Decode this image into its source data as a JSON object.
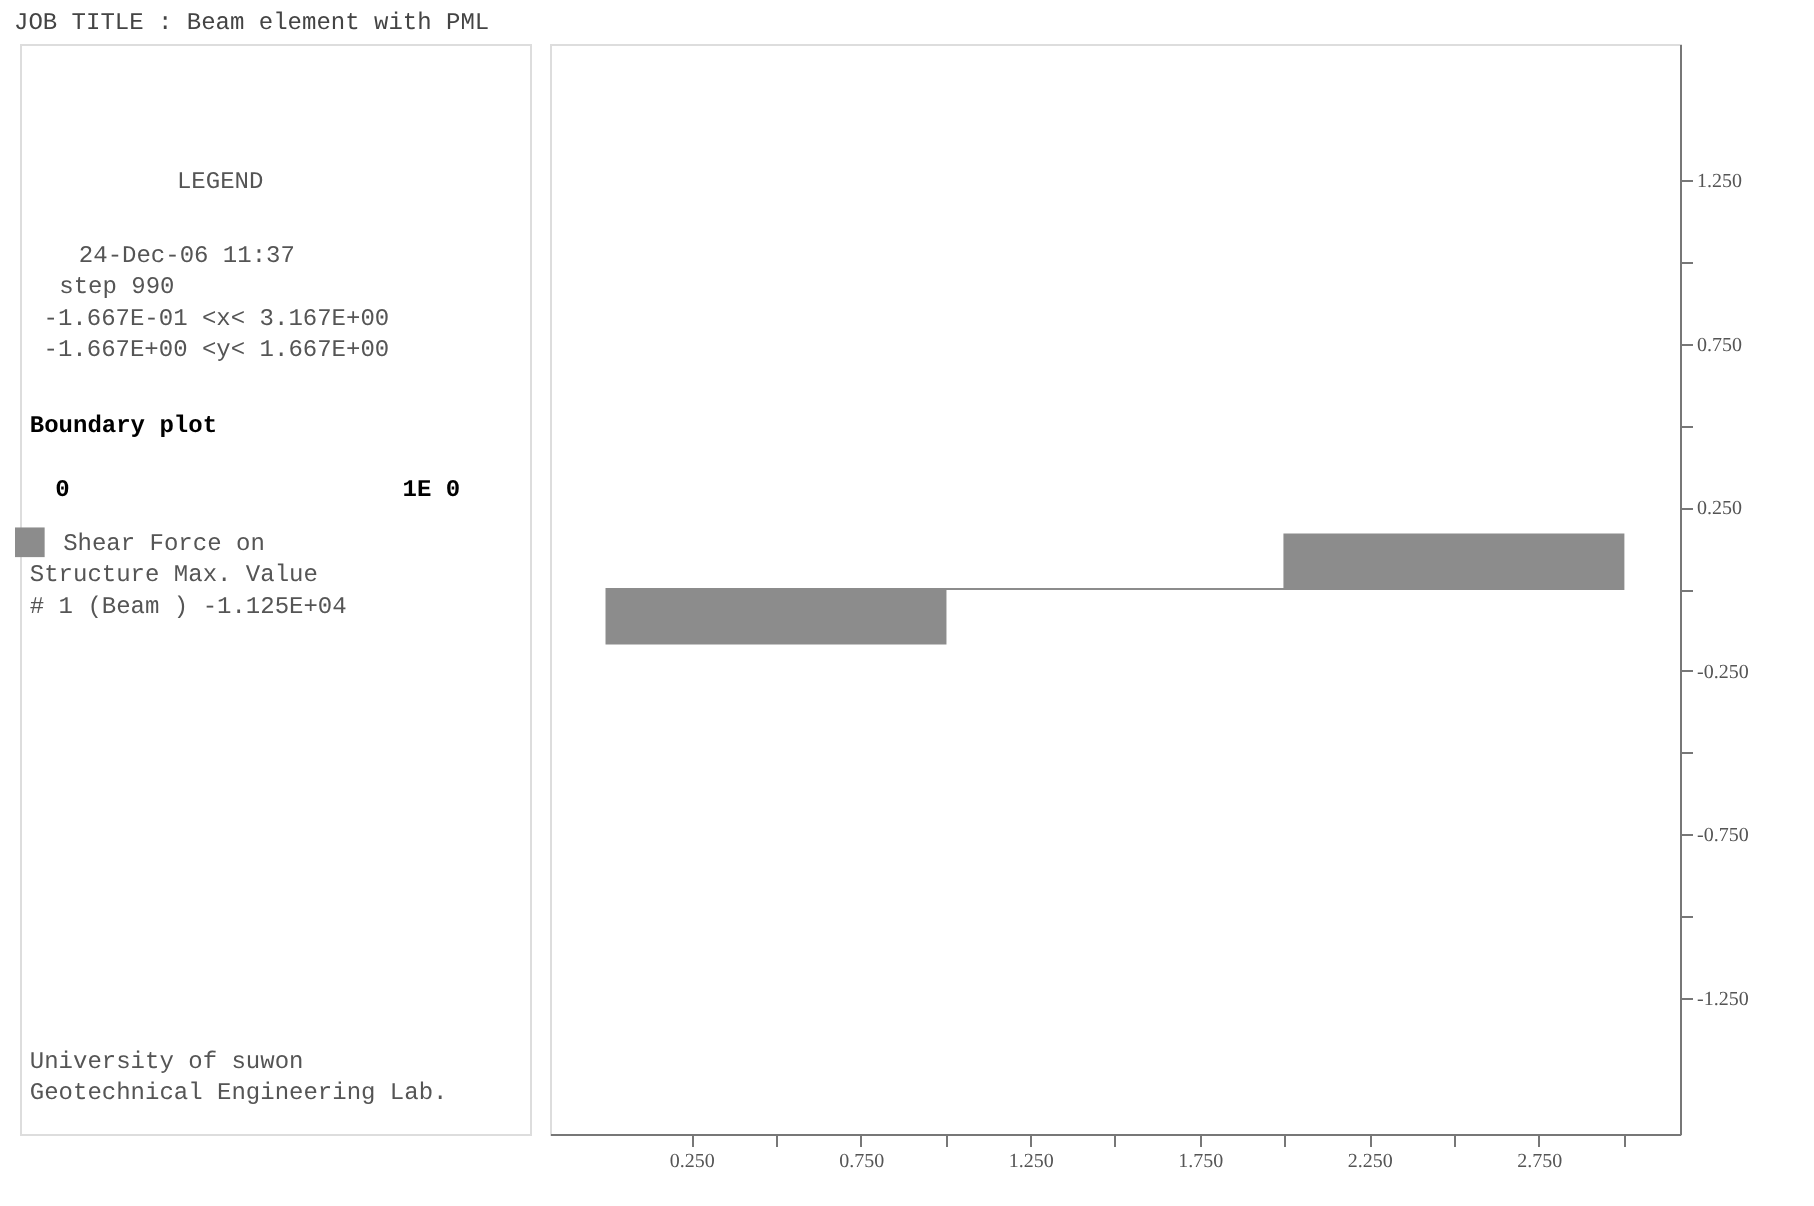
{
  "chart_data": {
    "type": "bar",
    "title": "JOB TITLE : Beam element with PML",
    "x": [
      0.5,
      1.5,
      2.5
    ],
    "series": [
      {
        "name": "Shear Force on",
        "color": "#8c8c8c",
        "values": [
          -0.167,
          0,
          0.167
        ]
      }
    ],
    "xlim": [
      -0.1667,
      3.167
    ],
    "ylim": [
      -1.667,
      1.667
    ],
    "xticks": [
      {
        "value": 0.25,
        "label": "0.250"
      },
      {
        "value": 0.5,
        "label": null
      },
      {
        "value": 0.75,
        "label": "0.750"
      },
      {
        "value": 1.0,
        "label": null
      },
      {
        "value": 1.25,
        "label": "1.250"
      },
      {
        "value": 1.5,
        "label": null
      },
      {
        "value": 1.75,
        "label": "1.750"
      },
      {
        "value": 2.0,
        "label": null
      },
      {
        "value": 2.25,
        "label": "2.250"
      },
      {
        "value": 2.5,
        "label": null
      },
      {
        "value": 2.75,
        "label": "2.750"
      },
      {
        "value": 3.0,
        "label": null
      }
    ],
    "yticks": [
      {
        "value": -1.25,
        "label": "-1.250"
      },
      {
        "value": -1.0,
        "label": null
      },
      {
        "value": -0.75,
        "label": "-0.750"
      },
      {
        "value": -0.5,
        "label": null
      },
      {
        "value": -0.25,
        "label": "-0.250"
      },
      {
        "value": 0.0,
        "label": null
      },
      {
        "value": 0.25,
        "label": "0.250"
      },
      {
        "value": 0.5,
        "label": null
      },
      {
        "value": 0.75,
        "label": "0.750"
      },
      {
        "value": 1.0,
        "label": null
      },
      {
        "value": 1.25,
        "label": "1.250"
      }
    ],
    "grid": false,
    "legend": "left",
    "annotations": [
      "LEGEND",
      "24-Dec-06  11:37",
      "step    990",
      "-1.667E-01 <x<  3.167E+00",
      "-1.667E+00 <y<  1.667E+00",
      "Boundary plot",
      "0",
      "1E  0",
      "Structure       Max. Value",
      "# 1 (Beam )      -1.125E+04",
      "University of suwon",
      "Geotechnical Engineering Lab."
    ]
  }
}
